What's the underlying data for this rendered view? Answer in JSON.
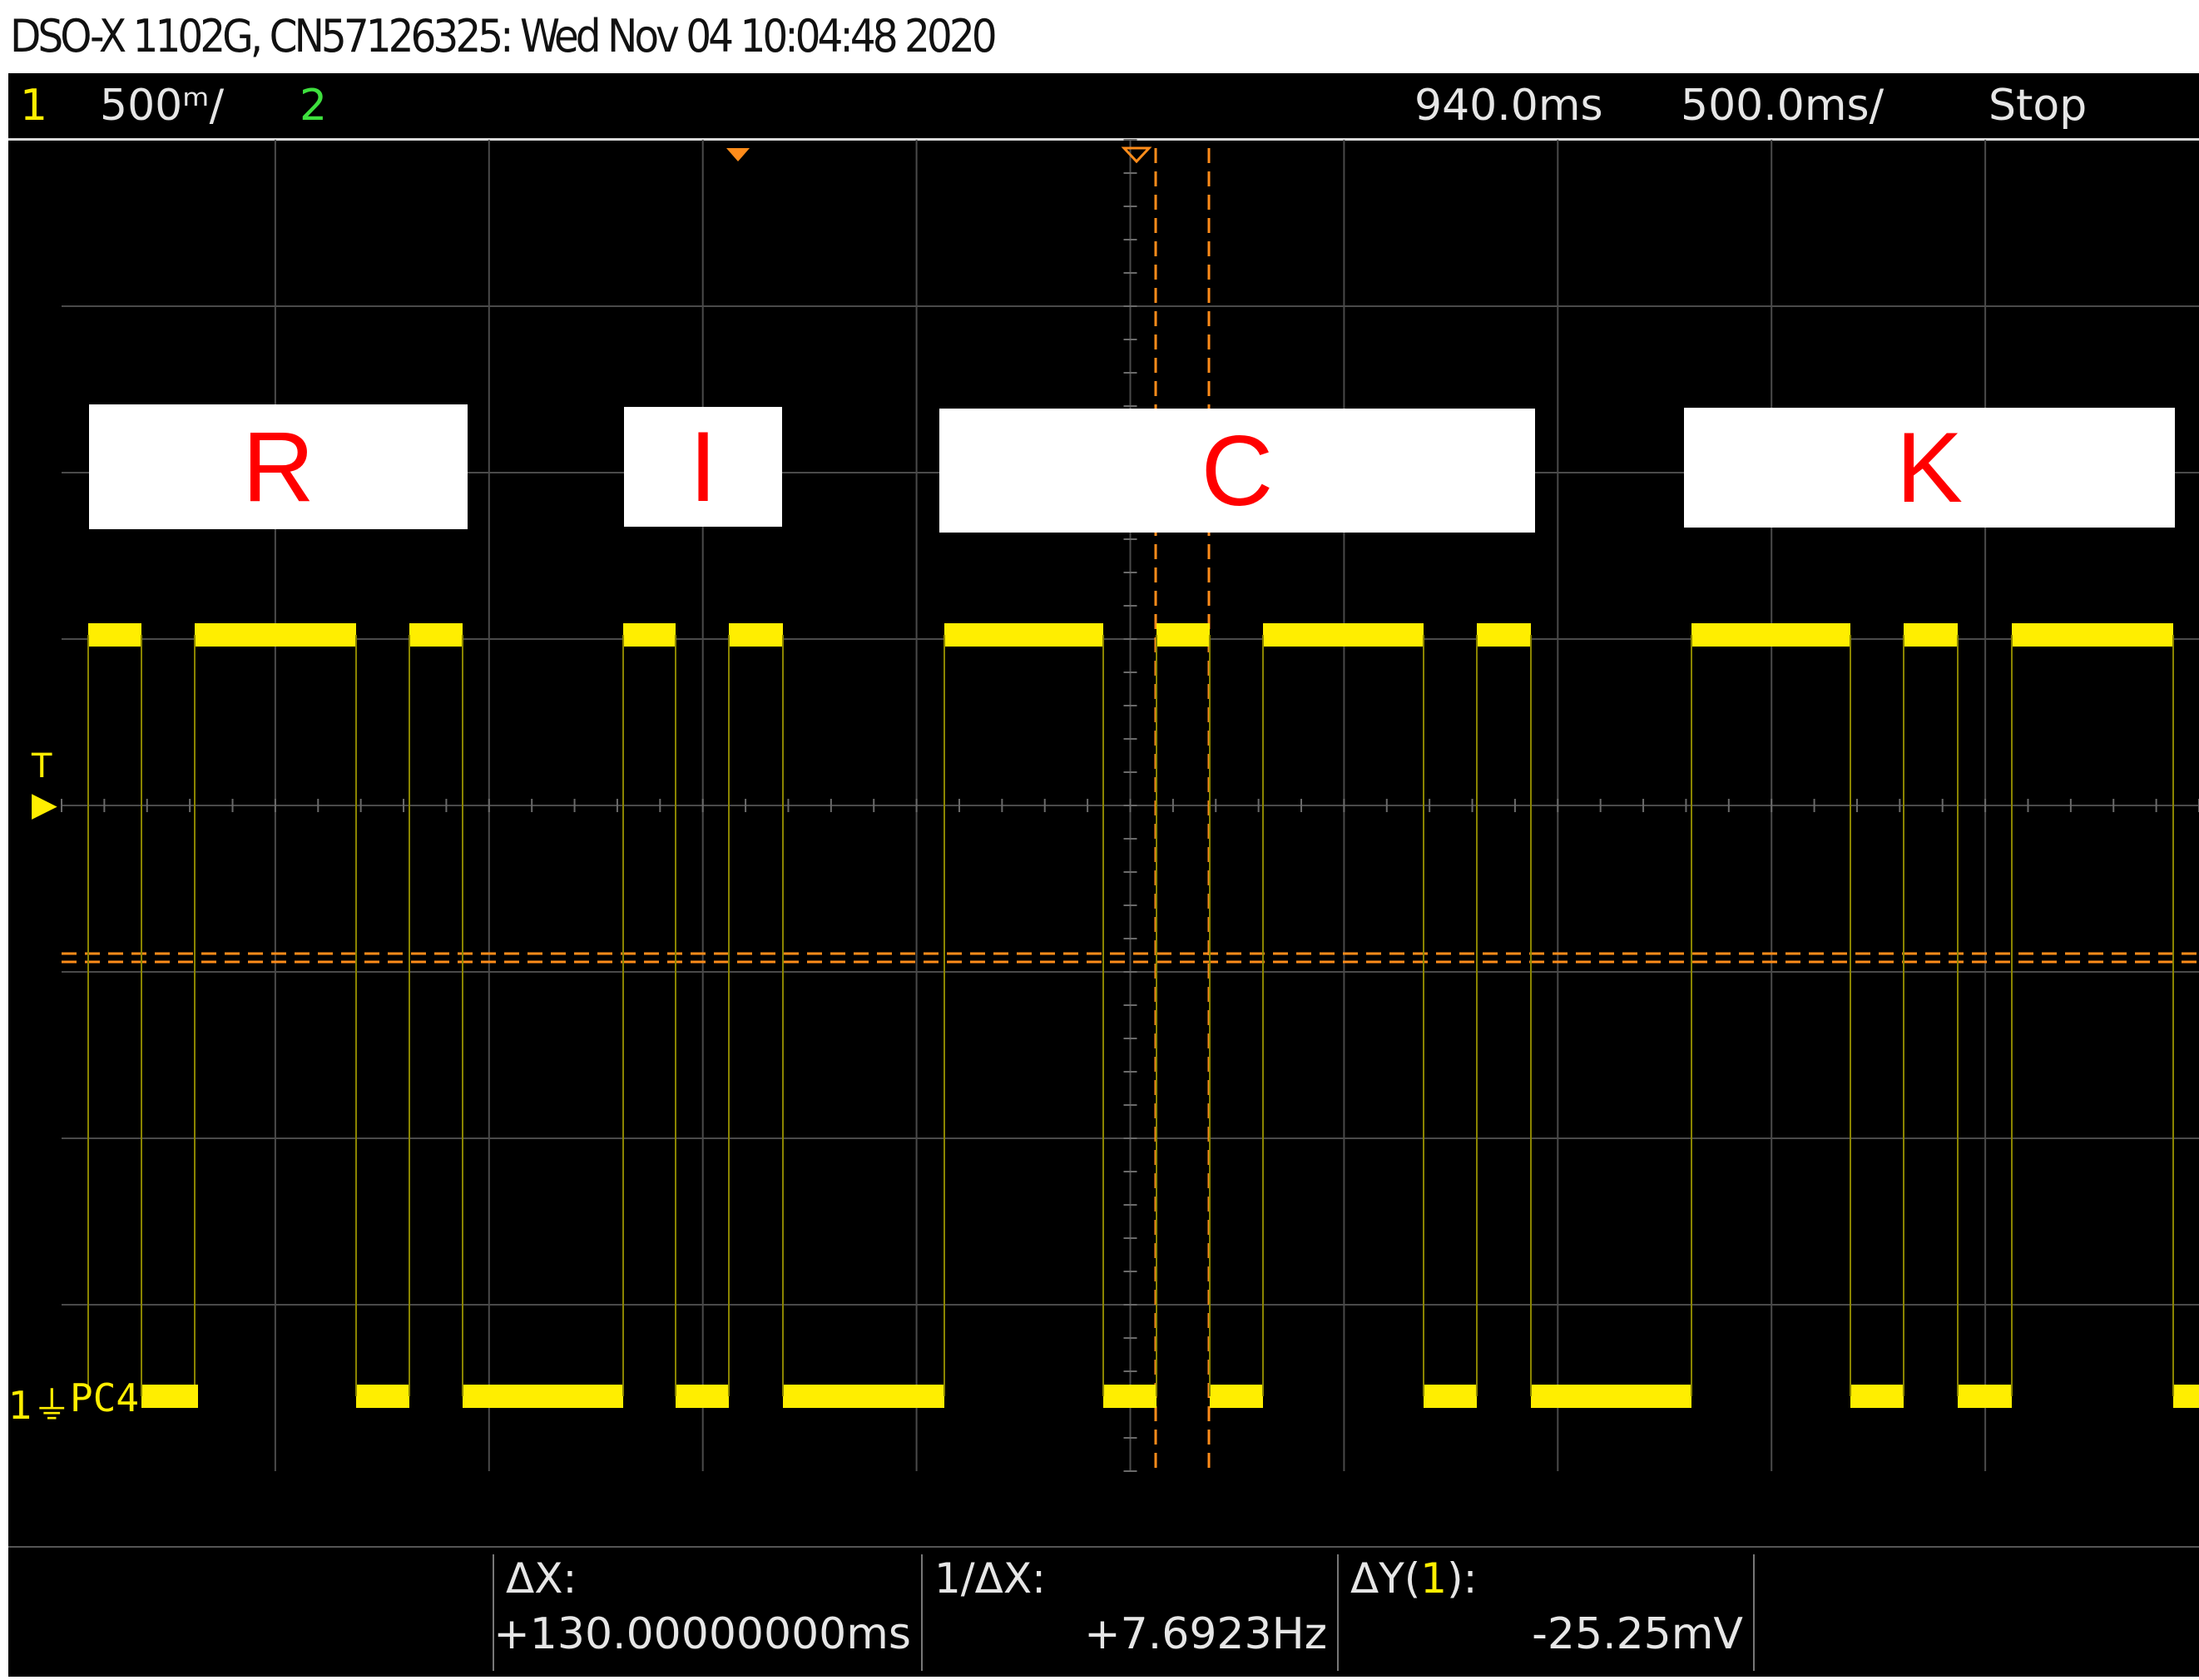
{
  "title": "DSO-X 1102G, CN57126325: Wed Nov 04 10:04:48 2020",
  "topbar": {
    "ch1_label": "1",
    "ch1_scale": "500ᵐ/",
    "ch2_label": "2",
    "delay": "940.0ms",
    "timebase": "500.0ms/",
    "run_state": "Stop"
  },
  "labels": [
    {
      "letter": "R"
    },
    {
      "letter": "I"
    },
    {
      "letter": "C"
    },
    {
      "letter": "K"
    }
  ],
  "trace": {
    "channel_label": "PC4",
    "ground_marker": "1",
    "trigger_marker": "T",
    "color": "#ffee00",
    "cursor_color": "#ff8c1a"
  },
  "measurements": {
    "dx_label": "ΔX:",
    "dx_value": "+130.00000000ms",
    "inv_dx_label": "1/ΔX:",
    "inv_dx_value": "+7.6923Hz",
    "dy_label_prefix": "ΔY(",
    "dy_label_channel": "1",
    "dy_label_suffix": "):",
    "dy_value": "-25.25mV"
  }
}
